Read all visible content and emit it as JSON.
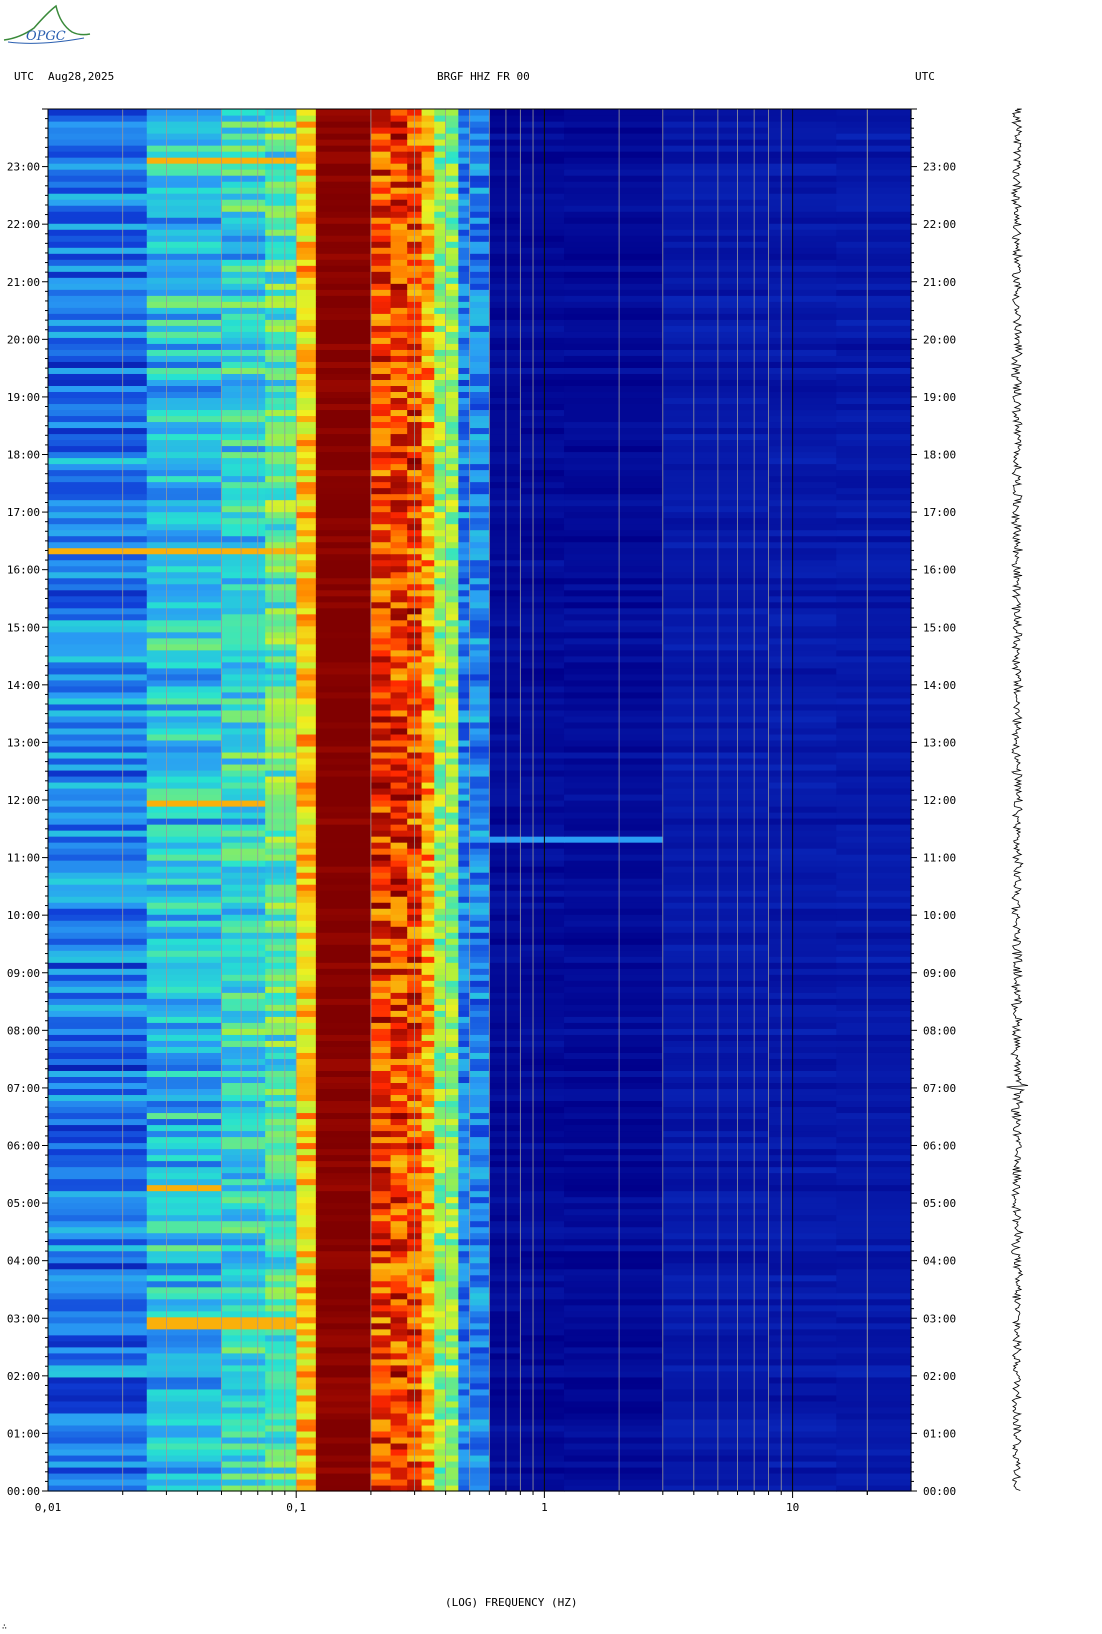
{
  "header": {
    "left_tz": "UTC",
    "date": "Aug28,2025",
    "channel": "BRGF HHZ FR 00",
    "right_tz": "UTC"
  },
  "logo": {
    "text": "OPGC",
    "colors": [
      "#3a8a3a",
      "#2a5fb0"
    ]
  },
  "colors": {
    "low": "#00008b",
    "mid_low": "#2a9df4",
    "mid": "#27e3d0",
    "mid_high": "#f0f020",
    "high": "#ff2800",
    "max": "#800000",
    "gridline": "#9a9a9a"
  },
  "chart_data": {
    "type": "heatmap",
    "title": "BRGF HHZ FR 00",
    "xlabel": "(LOG) FREQUENCY (HZ)",
    "ylabel": "UTC",
    "xscale": "log",
    "xlim": [
      0.01,
      30
    ],
    "ylim": [
      0,
      24
    ],
    "x_ticks": [
      0.01,
      0.1,
      1,
      10
    ],
    "x_tick_labels": [
      "0,01",
      "0,1",
      "1",
      "10"
    ],
    "y_tick_labels": [
      "00:00",
      "01:00",
      "02:00",
      "03:00",
      "04:00",
      "05:00",
      "06:00",
      "07:00",
      "08:00",
      "09:00",
      "10:00",
      "11:00",
      "12:00",
      "13:00",
      "14:00",
      "15:00",
      "16:00",
      "17:00",
      "18:00",
      "19:00",
      "20:00",
      "21:00",
      "22:00",
      "23:00"
    ],
    "colorscale": "jet",
    "dominant_band_hz": [
      0.12,
      0.2
    ],
    "microseism_band_hz": [
      0.2,
      0.45
    ],
    "noise_floor_above_hz": 0.6,
    "events": [
      {
        "time": "23:05",
        "freq_hz": [
          0.025,
          0.09
        ]
      },
      {
        "time": "16:20",
        "freq_hz": [
          0.01,
          0.1
        ]
      },
      {
        "time": "11:55",
        "freq_hz": [
          0.025,
          0.07
        ]
      },
      {
        "time": "11:20",
        "freq_hz": [
          0.3,
          2
        ]
      },
      {
        "time": "05:15",
        "freq_hz": [
          0.025,
          0.05
        ]
      },
      {
        "time": "02:55",
        "freq_hz": [
          0.025,
          0.1
        ]
      }
    ],
    "grid": true
  }
}
